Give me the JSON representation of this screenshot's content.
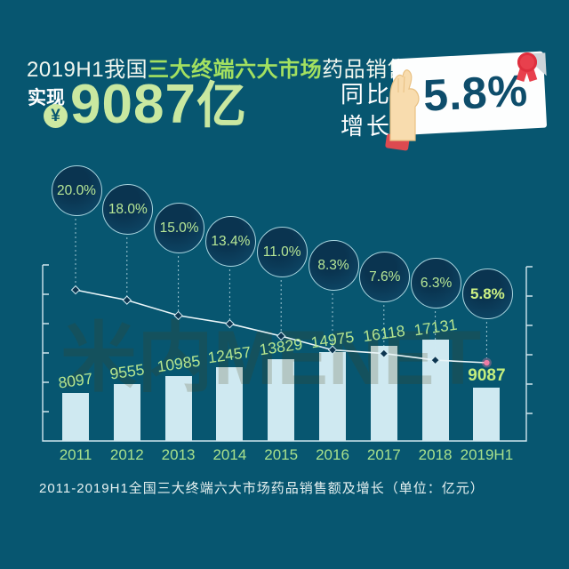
{
  "header": {
    "title": {
      "prefix": "2019H1我国",
      "highlight": "三大终端六大市场",
      "suffix": "药品销售额"
    },
    "achieved_label": "实现",
    "currency_symbol": "¥",
    "amount_value": "9087",
    "amount_unit": "亿",
    "yoy_label_line1": "同比",
    "yoy_label_line2": "增长",
    "yoy_value": "5.8%"
  },
  "chart_data": {
    "type": "bar",
    "subtype": "bar+line combo",
    "title": "2011-2019H1全国三大终端六大市场药品销售额及增长（单位：亿元）",
    "categories": [
      "2011",
      "2012",
      "2013",
      "2014",
      "2015",
      "2016",
      "2017",
      "2018",
      "2019H1"
    ],
    "series": [
      {
        "name": "药品销售额",
        "type": "bar",
        "unit": "亿元",
        "values": [
          8097,
          9555,
          10985,
          12457,
          13829,
          14975,
          16118,
          17131,
          9087
        ]
      },
      {
        "name": "同比增长",
        "type": "line",
        "unit": "%",
        "values": [
          20.0,
          18.0,
          15.0,
          13.4,
          11.0,
          8.3,
          7.6,
          6.3,
          5.8
        ]
      }
    ],
    "bar_value_labels": [
      "8097",
      "9555",
      "10985",
      "12457",
      "13829",
      "14975",
      "16118",
      "17131",
      "9087"
    ],
    "growth_labels": [
      "20.0%",
      "18.0%",
      "15.0%",
      "13.4%",
      "11.0%",
      "8.3%",
      "7.6%",
      "6.3%",
      "5.8%"
    ],
    "highlight_index": 8,
    "ylim": [
      0,
      18000
    ],
    "grid": false,
    "legend_position": "none"
  },
  "caption": "2011-2019H1全国三大终端六大市场药品销售额及增长（单位：亿元）",
  "watermark": "米内MENET",
  "colors": {
    "background": "#075670",
    "accent_green": "#a3e060",
    "light_green": "#c9e8a0",
    "bar_fill": "#cfe9f1",
    "bubble_fill": "#0c3f5d",
    "card_text": "#0e4d6b",
    "rosette_red": "#e8404d",
    "line_white": "#e9f5f8",
    "last_marker_pink": "#ef7ca4"
  }
}
